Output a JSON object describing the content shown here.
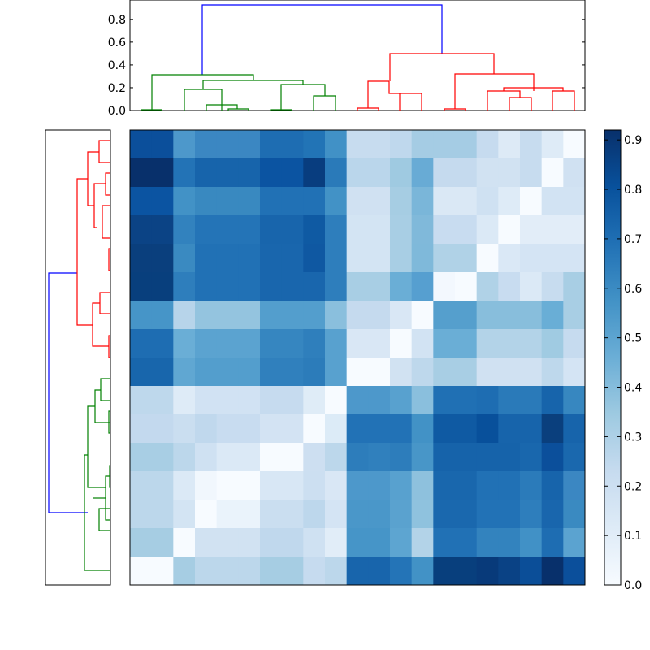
{
  "chart_data": {
    "type": "heatmap",
    "title": "",
    "xlabel": "",
    "ylabel": "",
    "n": 21,
    "cell_colors": [
      [
        "#0b4f9b",
        "#0b4f9b",
        "#4d98cb",
        "#3b87c2",
        "#3b87c2",
        "#3b87c2",
        "#1e6db2",
        "#1e6db2",
        "#2274b6",
        "#4191c6",
        "#c7dcef",
        "#c7dcef",
        "#bfd8ed",
        "#a5cce4",
        "#a5cce4",
        "#a5cce4",
        "#c6dbef",
        "#ddeaf6",
        "#c7dcef",
        "#deebf7",
        "#f7fbff"
      ],
      [
        "#08306b",
        "#08306b",
        "#2373b6",
        "#1764ab",
        "#1764ab",
        "#1764ab",
        "#0b54a2",
        "#0b54a2",
        "#083d7f",
        "#2a7ab9",
        "#bad6eb",
        "#bad6eb",
        "#9fcae1",
        "#68abd5",
        "#c5daee",
        "#c5daee",
        "#d1e2f2",
        "#d1e2f2",
        "#c7dcef",
        "#f7fbff",
        "#d0e1f2"
      ],
      [
        "#0b54a2",
        "#0b54a2",
        "#4292c6",
        "#3989c0",
        "#3989c0",
        "#3989c0",
        "#2171b5",
        "#2171b5",
        "#2171b5",
        "#4292c6",
        "#d0e1f2",
        "#d0e1f2",
        "#a6cde3",
        "#7ab6d9",
        "#dae8f5",
        "#dae8f5",
        "#cfe1f2",
        "#deebf7",
        "#f7fbff",
        "#d2e3f3",
        "#d2e3f3"
      ],
      [
        "#0b4385",
        "#0b4385",
        "#3282be",
        "#2474b7",
        "#2474b7",
        "#2474b7",
        "#1865ac",
        "#1865ac",
        "#0f5aa3",
        "#2e7ebc",
        "#d3e4f3",
        "#d3e4f3",
        "#a8cee4",
        "#80b9da",
        "#c8dcf0",
        "#c8dcf0",
        "#dbe9f6",
        "#f7fbff",
        "#e2edf8",
        "#e2edf8",
        "#e2edf8"
      ],
      [
        "#0a3f7d",
        "#0a3f7d",
        "#3a8ac1",
        "#2171b5",
        "#2171b5",
        "#2171b5",
        "#1966ad",
        "#1966ad",
        "#0f58a2",
        "#2e7ebc",
        "#d3e4f3",
        "#d3e4f3",
        "#a8cee4",
        "#7fb9da",
        "#b0d2e7",
        "#b0d2e7",
        "#f7fbff",
        "#dae8f6",
        "#d4e4f4",
        "#d4e4f4",
        "#d4e4f4"
      ],
      [
        "#083f7d",
        "#083f7d",
        "#2e7ebc",
        "#2171b5",
        "#2171b5",
        "#2171b5",
        "#1966ad",
        "#1966ad",
        "#1966ad",
        "#2e7ebc",
        "#a8cee4",
        "#a8cee4",
        "#6aaed6",
        "#569fd0",
        "#f3f8fe",
        "#f7fbff",
        "#b0d2e7",
        "#c8dcf0",
        "#dbe9f6",
        "#c7dcef",
        "#a8cee4"
      ],
      [
        "#4695c8",
        "#4695c8",
        "#b7d4ea",
        "#94c4df",
        "#94c4df",
        "#94c4df",
        "#539ecd",
        "#539ecd",
        "#539ecd",
        "#8abfdd",
        "#c5daee",
        "#c5daee",
        "#d9e7f5",
        "#f7fbff",
        "#559fcd",
        "#559fcd",
        "#88bedc",
        "#88bedc",
        "#88bedc",
        "#69aed6",
        "#a8cee4"
      ],
      [
        "#1e6db2",
        "#1e6db2",
        "#6aaed6",
        "#5ba3d0",
        "#5ba3d0",
        "#5ba3d0",
        "#3686c0",
        "#3686c0",
        "#2f7fbc",
        "#58a1cf",
        "#d9e7f5",
        "#d9e7f5",
        "#f7fbff",
        "#d2e3f3",
        "#6aaed6",
        "#6aaed6",
        "#b3d3e8",
        "#b3d3e8",
        "#b3d3e8",
        "#a0cbe2",
        "#c6dbef"
      ],
      [
        "#1866ac",
        "#1866ac",
        "#60a7d2",
        "#539ecd",
        "#539ecd",
        "#539ecd",
        "#3080bd",
        "#3080bd",
        "#2c7cba",
        "#58a1cf",
        "#f7fbff",
        "#f7fbff",
        "#d1e2f2",
        "#bed8ec",
        "#a8cee4",
        "#a8cee4",
        "#d0e1f2",
        "#d0e1f2",
        "#d0e1f2",
        "#bed8ec",
        "#d4e4f4"
      ],
      [
        "#bed8ec",
        "#bed8ec",
        "#deebf7",
        "#d1e2f3",
        "#d1e2f3",
        "#d1e2f3",
        "#c6dbef",
        "#c6dbef",
        "#dfecf7",
        "#f7fbff",
        "#4d98cb",
        "#4d98cb",
        "#58a1cf",
        "#8abfdd",
        "#2070b4",
        "#2070b4",
        "#1e6db2",
        "#2a7ab9",
        "#2a7ab9",
        "#1764ab",
        "#3787c0"
      ],
      [
        "#c3d9ee",
        "#c3d9ee",
        "#cadef0",
        "#c0d8ed",
        "#c8dcf0",
        "#c8dcf0",
        "#d3e3f3",
        "#d3e3f3",
        "#f7fbff",
        "#dcebf7",
        "#2272b6",
        "#2272b6",
        "#2272b6",
        "#4292c6",
        "#0f5aa3",
        "#0f5aa3",
        "#08509b",
        "#1764ab",
        "#1764ab",
        "#0a3f7d",
        "#1764ab"
      ],
      [
        "#a8cee4",
        "#a8cee4",
        "#bcd7eb",
        "#cfe1f2",
        "#dbe9f6",
        "#dbe9f6",
        "#f7fbff",
        "#f7fbff",
        "#cddff1",
        "#bcd7eb",
        "#2d7dbb",
        "#3080bd",
        "#2d7dbb",
        "#4896c8",
        "#1663aa",
        "#1663aa",
        "#1663aa",
        "#1663aa",
        "#1967ad",
        "#0b4f9b",
        "#1a68ae"
      ],
      [
        "#bcd7eb",
        "#bcd7eb",
        "#dbe9f6",
        "#f1f7fd",
        "#f7fbff",
        "#f7fbff",
        "#d8e7f5",
        "#d8e7f5",
        "#ccdff1",
        "#d9e7f5",
        "#4d98cb",
        "#4d98cb",
        "#58a1cf",
        "#8ec1dd",
        "#1967ad",
        "#1967ad",
        "#2171b5",
        "#2171b5",
        "#2b7bba",
        "#1764ab",
        "#3b87c2"
      ],
      [
        "#bcd7eb",
        "#bcd7eb",
        "#d3e4f3",
        "#f7fbff",
        "#eaf3fb",
        "#eaf3fb",
        "#cadef0",
        "#cadef0",
        "#bdd7ec",
        "#d4e4f4",
        "#4a97c9",
        "#4a97c9",
        "#5aa2cf",
        "#8fc2de",
        "#1a68ae",
        "#1a68ae",
        "#2272b6",
        "#2272b6",
        "#2e7ebc",
        "#1966ad",
        "#3a8ac1"
      ],
      [
        "#a6cde3",
        "#a6cde3",
        "#f7fbff",
        "#d1e2f2",
        "#d1e2f2",
        "#d1e2f2",
        "#c0d8ed",
        "#c0d8ed",
        "#cfe1f2",
        "#e1edf8",
        "#4695c8",
        "#4695c8",
        "#5da5d1",
        "#b3d3e8",
        "#2171b5",
        "#2171b5",
        "#3383be",
        "#3383be",
        "#4191c6",
        "#1e6db2",
        "#5ba3d0"
      ],
      [
        "#f7fbff",
        "#f7fbff",
        "#a6cde3",
        "#bcd7eb",
        "#bcd7eb",
        "#bcd7eb",
        "#a6cde3",
        "#a6cde3",
        "#c6dbef",
        "#bcd7eb",
        "#1865ac",
        "#1865ac",
        "#2474b7",
        "#4292c6",
        "#083f7d",
        "#083f7d",
        "#083a7a",
        "#0a4285",
        "#0b4e98",
        "#08306b",
        "#0b4f9b"
      ]
    ],
    "colorbar": {
      "min": 0.0,
      "max": 0.92,
      "ticks": [
        "0.0",
        "0.1",
        "0.2",
        "0.3",
        "0.4",
        "0.5",
        "0.6",
        "0.7",
        "0.8",
        "0.9"
      ],
      "tick_values": [
        0,
        0.1,
        0.2,
        0.3,
        0.4,
        0.5,
        0.6,
        0.7,
        0.8,
        0.9
      ],
      "colormap": [
        "#f7fbff",
        "#deebf7",
        "#c6dbef",
        "#9ecae1",
        "#6baed6",
        "#4292c6",
        "#2171b5",
        "#08519c",
        "#08306b"
      ]
    },
    "top_dendrogram": {
      "ylim": [
        0,
        0.97
      ],
      "yticks": [
        "0.0",
        "0.2",
        "0.4",
        "0.6",
        "0.8"
      ],
      "ytick_values": [
        0,
        0.2,
        0.4,
        0.6,
        0.8
      ],
      "cluster_colors": {
        "left": "#008000",
        "right": "#ff0000",
        "root": "#0000ff"
      }
    },
    "left_dendrogram": {
      "cluster_colors": {
        "top": "#ff0000",
        "bottom": "#008000",
        "root": "#0000ff"
      }
    }
  }
}
